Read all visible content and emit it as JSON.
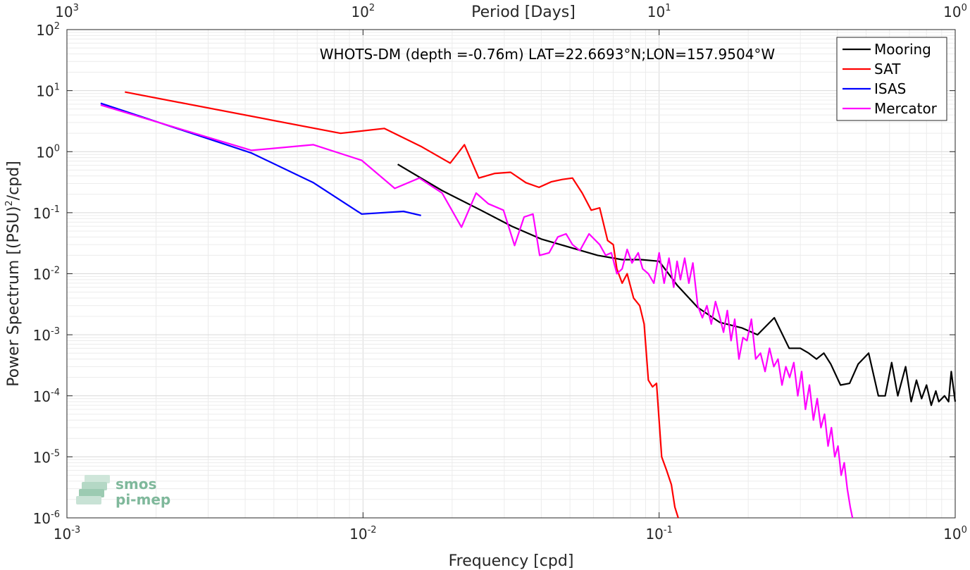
{
  "chart_data": {
    "type": "line",
    "title": "WHOTS-DM (depth =-0.76m) LAT=22.6693°N;LON=157.9504°W",
    "xlabel": "Frequency [cpd]",
    "ylabel": "Power Spectrum [(PSU)",
    "ylabel_sup": "2",
    "ylabel_tail": "/cpd]",
    "x2label": "Period [Days]",
    "xscale": "log",
    "yscale": "log",
    "xlim": [
      0.001,
      1
    ],
    "ylim": [
      1e-06,
      100
    ],
    "grid": true,
    "legend_position": "top-right",
    "xticks": [
      {
        "value": 0.001,
        "base": "10",
        "exp": "-3"
      },
      {
        "value": 0.01,
        "base": "10",
        "exp": "-2"
      },
      {
        "value": 0.1,
        "base": "10",
        "exp": "-1"
      },
      {
        "value": 1,
        "base": "10",
        "exp": "0"
      }
    ],
    "yticks": [
      {
        "value": 100,
        "base": "10",
        "exp": "2"
      },
      {
        "value": 10,
        "base": "10",
        "exp": "1"
      },
      {
        "value": 1,
        "base": "10",
        "exp": "0"
      },
      {
        "value": 0.1,
        "base": "10",
        "exp": "-1"
      },
      {
        "value": 0.01,
        "base": "10",
        "exp": "-2"
      },
      {
        "value": 0.001,
        "base": "10",
        "exp": "-3"
      },
      {
        "value": 0.0001,
        "base": "10",
        "exp": "-4"
      },
      {
        "value": 1e-05,
        "base": "10",
        "exp": "-5"
      },
      {
        "value": 1e-06,
        "base": "10",
        "exp": "-6"
      }
    ],
    "x2ticks": [
      {
        "value": 1000,
        "base": "10",
        "exp": "3"
      },
      {
        "value": 100,
        "base": "10",
        "exp": "2"
      },
      {
        "value": 10,
        "base": "10",
        "exp": "1"
      },
      {
        "value": 1,
        "base": "10",
        "exp": "0"
      }
    ],
    "series": [
      {
        "name": "Mooring",
        "color": "#000000",
        "x": [
          0.0131,
          0.0185,
          0.025,
          0.0318,
          0.04,
          0.05,
          0.062,
          0.075,
          0.087,
          0.1,
          0.115,
          0.135,
          0.16,
          0.19,
          0.215,
          0.245,
          0.275,
          0.3,
          0.32,
          0.34,
          0.36,
          0.38,
          0.41,
          0.44,
          0.47,
          0.51,
          0.55,
          0.58,
          0.61,
          0.64,
          0.68,
          0.71,
          0.74,
          0.77,
          0.8,
          0.83,
          0.86,
          0.88,
          0.92,
          0.95,
          0.97,
          1.0
        ],
        "y": [
          0.62,
          0.23,
          0.11,
          0.06,
          0.037,
          0.027,
          0.02,
          0.017,
          0.017,
          0.016,
          0.0065,
          0.0028,
          0.0016,
          0.0013,
          0.001,
          0.0019,
          0.0006,
          0.0006,
          0.0005,
          0.0004,
          0.0005,
          0.00033,
          0.00015,
          0.00016,
          0.00033,
          0.0005,
          0.0001,
          0.0001,
          0.00035,
          0.0001,
          0.0003,
          8e-05,
          0.00018,
          9e-05,
          0.00015,
          7e-05,
          0.00012,
          8e-05,
          0.0001,
          8e-05,
          0.00025,
          8e-05
        ]
      },
      {
        "name": "SAT",
        "color": "#ff0000",
        "x": [
          0.00157,
          0.0084,
          0.0118,
          0.0158,
          0.0197,
          0.022,
          0.0246,
          0.0279,
          0.0315,
          0.0355,
          0.0393,
          0.0432,
          0.0471,
          0.051,
          0.055,
          0.059,
          0.063,
          0.067,
          0.07,
          0.072,
          0.075,
          0.078,
          0.082,
          0.086,
          0.089,
          0.092,
          0.095,
          0.098,
          0.102,
          0.106,
          0.11,
          0.113,
          0.116
        ],
        "y": [
          9.5,
          2.0,
          2.4,
          1.2,
          0.65,
          1.3,
          0.37,
          0.44,
          0.46,
          0.31,
          0.26,
          0.32,
          0.35,
          0.37,
          0.21,
          0.11,
          0.12,
          0.035,
          0.03,
          0.012,
          0.007,
          0.01,
          0.004,
          0.003,
          0.0015,
          0.00018,
          0.00014,
          0.00016,
          1e-05,
          6e-06,
          3.5e-06,
          1.5e-06,
          1e-06
        ]
      },
      {
        "name": "ISAS",
        "color": "#0000ff",
        "x": [
          0.0013,
          0.0042,
          0.0068,
          0.0099,
          0.0137,
          0.0157
        ],
        "y": [
          6.2,
          0.95,
          0.31,
          0.095,
          0.105,
          0.09
        ]
      },
      {
        "name": "Mercator",
        "color": "#ff00ff",
        "x": [
          0.0013,
          0.0042,
          0.0068,
          0.0099,
          0.0128,
          0.0155,
          0.0185,
          0.0215,
          0.0241,
          0.0265,
          0.0298,
          0.0325,
          0.035,
          0.0375,
          0.0395,
          0.0425,
          0.0455,
          0.0485,
          0.051,
          0.054,
          0.058,
          0.063,
          0.066,
          0.069,
          0.072,
          0.075,
          0.078,
          0.081,
          0.085,
          0.088,
          0.092,
          0.096,
          0.1,
          0.104,
          0.108,
          0.112,
          0.115,
          0.118,
          0.122,
          0.126,
          0.13,
          0.135,
          0.14,
          0.145,
          0.15,
          0.155,
          0.16,
          0.165,
          0.17,
          0.175,
          0.18,
          0.186,
          0.192,
          0.198,
          0.205,
          0.212,
          0.22,
          0.228,
          0.236,
          0.244,
          0.252,
          0.26,
          0.268,
          0.276,
          0.285,
          0.294,
          0.303,
          0.312,
          0.322,
          0.332,
          0.342,
          0.352,
          0.362,
          0.372,
          0.382,
          0.392,
          0.402,
          0.412,
          0.422,
          0.432,
          0.442,
          0.45
        ],
        "y": [
          5.8,
          1.05,
          1.3,
          0.72,
          0.25,
          0.37,
          0.21,
          0.058,
          0.21,
          0.14,
          0.11,
          0.029,
          0.085,
          0.095,
          0.02,
          0.022,
          0.04,
          0.045,
          0.03,
          0.024,
          0.045,
          0.03,
          0.02,
          0.022,
          0.01,
          0.012,
          0.025,
          0.015,
          0.022,
          0.012,
          0.01,
          0.007,
          0.022,
          0.007,
          0.018,
          0.006,
          0.016,
          0.008,
          0.018,
          0.007,
          0.015,
          0.003,
          0.0019,
          0.003,
          0.0015,
          0.0035,
          0.002,
          0.0011,
          0.0025,
          0.0008,
          0.0018,
          0.0004,
          0.0009,
          0.0008,
          0.0018,
          0.0004,
          0.0005,
          0.00025,
          0.0006,
          0.0003,
          0.0004,
          0.00015,
          0.0003,
          0.0002,
          0.00035,
          0.0001,
          0.00025,
          6e-05,
          0.00015,
          4e-05,
          9e-05,
          3e-05,
          5e-05,
          1.5e-05,
          3e-05,
          1e-05,
          1.5e-05,
          5e-06,
          8e-06,
          3e-06,
          1.5e-06,
          1e-06
        ]
      }
    ]
  },
  "logo": {
    "line1": "smos",
    "line2": "pi-mep",
    "color": "#7fb89b"
  }
}
